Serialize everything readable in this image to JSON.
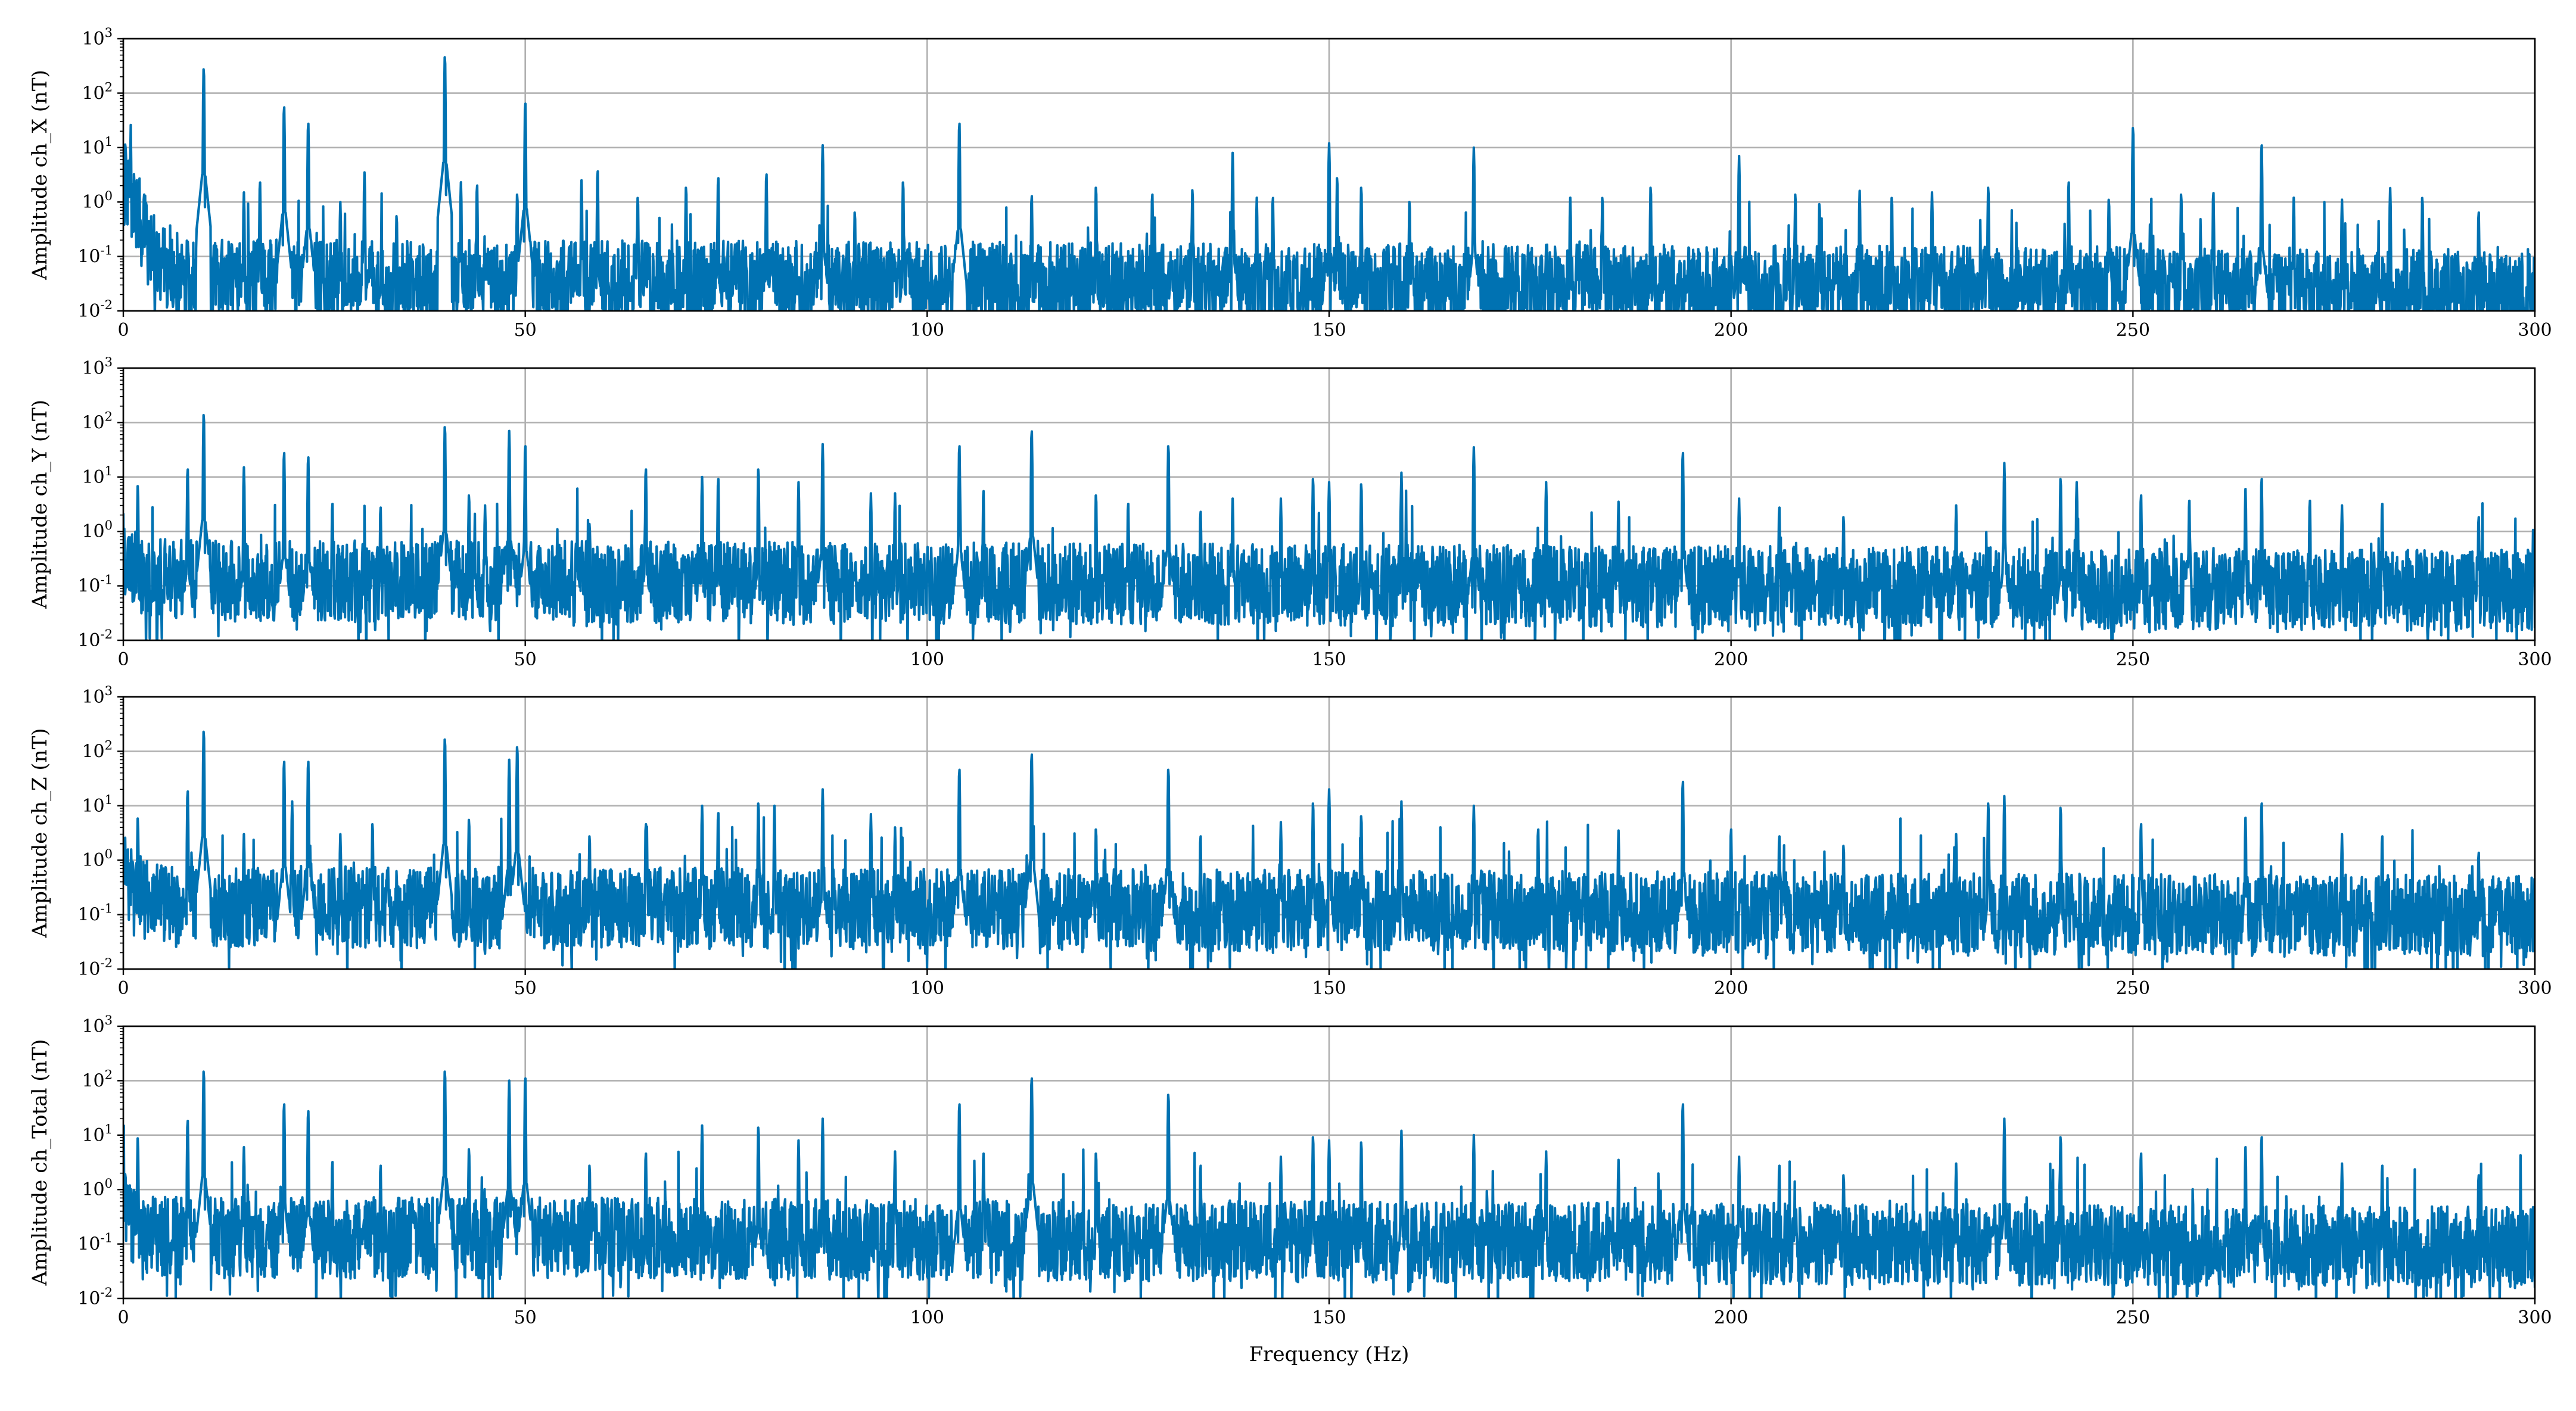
{
  "chart_data": [
    {
      "type": "line",
      "xlabel": "",
      "ylabel": "Amplitude ch_X (nT)",
      "xlim": [
        0,
        300
      ],
      "ylim": [
        0.01,
        1000
      ],
      "yscale": "log",
      "grid": true,
      "line_color": "#0072b2",
      "xticks": [
        "0",
        "50",
        "100",
        "150",
        "200",
        "250",
        "300"
      ],
      "yticks": [
        {
          "base": "10",
          "exp": "-2"
        },
        {
          "base": "10",
          "exp": "-1"
        },
        {
          "base": "10",
          "exp": "0"
        },
        {
          "base": "10",
          "exp": "1"
        },
        {
          "base": "10",
          "exp": "2"
        },
        {
          "base": "10",
          "exp": "3"
        }
      ],
      "series": [
        {
          "noise_floor": 0.045,
          "low_freq_start": 3.0,
          "peaks": [
            [
              0.3,
              10
            ],
            [
              10,
              300
            ],
            [
              15,
              1.5
            ],
            [
              17,
              2.5
            ],
            [
              20,
              60
            ],
            [
              23,
              30
            ],
            [
              27,
              1.0
            ],
            [
              30,
              3.5
            ],
            [
              34,
              0.6
            ],
            [
              40,
              500
            ],
            [
              42,
              2.3
            ],
            [
              44,
              2.2
            ],
            [
              49,
              1.5
            ],
            [
              50,
              70
            ],
            [
              57,
              2.5
            ],
            [
              59,
              4.0
            ],
            [
              64,
              1.3
            ],
            [
              70,
              2.0
            ],
            [
              74,
              3.0
            ],
            [
              80,
              3.5
            ],
            [
              87,
              11
            ],
            [
              91,
              0.7
            ],
            [
              97,
              2.5
            ],
            [
              104,
              30
            ],
            [
              113,
              1.4
            ],
            [
              121,
              2.0
            ],
            [
              128,
              1.5
            ],
            [
              133,
              1.8
            ],
            [
              138,
              8.0
            ],
            [
              141,
              1.2
            ],
            [
              143,
              1.3
            ],
            [
              150,
              12
            ],
            [
              151,
              3.0
            ],
            [
              154,
              2.0
            ],
            [
              160,
              1.1
            ],
            [
              168,
              10
            ],
            [
              180,
              1.2
            ],
            [
              184,
              1.3
            ],
            [
              190,
              2.0
            ],
            [
              201,
              7.0
            ],
            [
              208,
              1.5
            ],
            [
              211,
              1.0
            ],
            [
              216,
              1.6
            ],
            [
              220,
              1.3
            ],
            [
              225,
              1.5
            ],
            [
              232,
              2.0
            ],
            [
              242,
              2.5
            ],
            [
              247,
              1.2
            ],
            [
              250,
              25
            ],
            [
              256,
              1.5
            ],
            [
              260,
              1.6
            ],
            [
              266,
              12
            ],
            [
              270,
              1.2
            ],
            [
              276,
              1.1
            ],
            [
              282,
              1.8
            ],
            [
              286,
              1.3
            ],
            [
              293,
              0.7
            ]
          ]
        }
      ]
    },
    {
      "type": "line",
      "xlabel": "",
      "ylabel": "Amplitude ch_Y (nT)",
      "xlim": [
        0,
        300
      ],
      "ylim": [
        0.01,
        1000
      ],
      "yscale": "log",
      "grid": true,
      "line_color": "#0072b2",
      "xticks": [
        "0",
        "50",
        "100",
        "150",
        "200",
        "250",
        "300"
      ],
      "yticks": [
        {
          "base": "10",
          "exp": "-2"
        },
        {
          "base": "10",
          "exp": "-1"
        },
        {
          "base": "10",
          "exp": "0"
        },
        {
          "base": "10",
          "exp": "1"
        },
        {
          "base": "10",
          "exp": "2"
        },
        {
          "base": "10",
          "exp": "3"
        }
      ],
      "series": [
        {
          "noise_floor": 0.15,
          "low_freq_start": 0.5,
          "peaks": [
            [
              1.8,
              7.0
            ],
            [
              8,
              15
            ],
            [
              10,
              150
            ],
            [
              15,
              15
            ],
            [
              20,
              30
            ],
            [
              23,
              25
            ],
            [
              26,
              3.5
            ],
            [
              32,
              3.0
            ],
            [
              40,
              90
            ],
            [
              43,
              5.0
            ],
            [
              45,
              3.0
            ],
            [
              48,
              70
            ],
            [
              50,
              40
            ],
            [
              58,
              1.5
            ],
            [
              65,
              15
            ],
            [
              72,
              10
            ],
            [
              74,
              10
            ],
            [
              79,
              15
            ],
            [
              84,
              8.0
            ],
            [
              87,
              40
            ],
            [
              93,
              5.0
            ],
            [
              96,
              5.0
            ],
            [
              104,
              40
            ],
            [
              107,
              6.0
            ],
            [
              113,
              75
            ],
            [
              121,
              5.0
            ],
            [
              125,
              3.5
            ],
            [
              130,
              40
            ],
            [
              134,
              2.5
            ],
            [
              138,
              4.0
            ],
            [
              144,
              4.0
            ],
            [
              148,
              10
            ],
            [
              150,
              8.0
            ],
            [
              154,
              8.0
            ],
            [
              159,
              12
            ],
            [
              168,
              35
            ],
            [
              177,
              8.0
            ],
            [
              186,
              3.5
            ],
            [
              194,
              30
            ],
            [
              201,
              4.0
            ],
            [
              206,
              3.0
            ],
            [
              214,
              2.0
            ],
            [
              228,
              3.0
            ],
            [
              234,
              18
            ],
            [
              241,
              10
            ],
            [
              243,
              8.0
            ],
            [
              251,
              5.0
            ],
            [
              257,
              4.0
            ],
            [
              264,
              6.0
            ],
            [
              266,
              10
            ],
            [
              272,
              4.0
            ],
            [
              276,
              3.0
            ],
            [
              281,
              3.5
            ],
            [
              293,
              2.0
            ]
          ]
        }
      ]
    },
    {
      "type": "line",
      "xlabel": "",
      "ylabel": "Amplitude ch_Z (nT)",
      "xlim": [
        0,
        300
      ],
      "ylim": [
        0.01,
        1000
      ],
      "yscale": "log",
      "grid": true,
      "line_color": "#0072b2",
      "xticks": [
        "0",
        "50",
        "100",
        "150",
        "200",
        "250",
        "300"
      ],
      "yticks": [
        {
          "base": "10",
          "exp": "-2"
        },
        {
          "base": "10",
          "exp": "-1"
        },
        {
          "base": "10",
          "exp": "0"
        },
        {
          "base": "10",
          "exp": "1"
        },
        {
          "base": "10",
          "exp": "2"
        },
        {
          "base": "10",
          "exp": "3"
        }
      ],
      "series": [
        {
          "noise_floor": 0.17,
          "low_freq_start": 0.8,
          "peaks": [
            [
              1.8,
              6.0
            ],
            [
              8,
              20
            ],
            [
              10,
              250
            ],
            [
              15,
              3.0
            ],
            [
              20,
              70
            ],
            [
              21,
              12
            ],
            [
              23,
              70
            ],
            [
              27,
              3.0
            ],
            [
              31,
              5.0
            ],
            [
              40,
              180
            ],
            [
              43,
              6.0
            ],
            [
              48,
              70
            ],
            [
              49,
              130
            ],
            [
              58,
              3.0
            ],
            [
              65,
              5.0
            ],
            [
              72,
              10
            ],
            [
              74,
              8.0
            ],
            [
              79,
              12
            ],
            [
              81,
              10
            ],
            [
              87,
              20
            ],
            [
              93,
              7.0
            ],
            [
              96,
              4.0
            ],
            [
              104,
              50
            ],
            [
              113,
              95
            ],
            [
              121,
              4.0
            ],
            [
              130,
              50
            ],
            [
              134,
              3.0
            ],
            [
              144,
              5.0
            ],
            [
              148,
              12
            ],
            [
              150,
              20
            ],
            [
              154,
              7.0
            ],
            [
              159,
              12
            ],
            [
              168,
              10
            ],
            [
              176,
              4.0
            ],
            [
              186,
              3.5
            ],
            [
              194,
              30
            ],
            [
              200,
              4.0
            ],
            [
              206,
              3.0
            ],
            [
              214,
              2.0
            ],
            [
              228,
              3.0
            ],
            [
              232,
              12
            ],
            [
              234,
              15
            ],
            [
              241,
              10
            ],
            [
              251,
              5.0
            ],
            [
              264,
              6.0
            ],
            [
              266,
              12
            ],
            [
              276,
              3.0
            ],
            [
              281,
              3.0
            ],
            [
              293,
              1.5
            ]
          ]
        }
      ]
    },
    {
      "type": "line",
      "xlabel": "Frequency (Hz)",
      "ylabel": "Amplitude ch_Total (nT)",
      "xlim": [
        0,
        300
      ],
      "ylim": [
        0.01,
        1000
      ],
      "yscale": "log",
      "grid": true,
      "line_color": "#0072b2",
      "xticks": [
        "0",
        "50",
        "100",
        "150",
        "200",
        "250",
        "300"
      ],
      "yticks": [
        {
          "base": "10",
          "exp": "-2"
        },
        {
          "base": "10",
          "exp": "-1"
        },
        {
          "base": "10",
          "exp": "0"
        },
        {
          "base": "10",
          "exp": "1"
        },
        {
          "base": "10",
          "exp": "2"
        },
        {
          "base": "10",
          "exp": "3"
        }
      ],
      "series": [
        {
          "noise_floor": 0.16,
          "low_freq_start": 0.5,
          "peaks": [
            [
              1.8,
              9.0
            ],
            [
              8,
              20
            ],
            [
              10,
              160
            ],
            [
              15,
              6.0
            ],
            [
              20,
              40
            ],
            [
              23,
              30
            ],
            [
              26,
              3.5
            ],
            [
              32,
              3.0
            ],
            [
              40,
              160
            ],
            [
              43,
              6.0
            ],
            [
              48,
              100
            ],
            [
              50,
              120
            ],
            [
              58,
              3.0
            ],
            [
              65,
              5.0
            ],
            [
              72,
              15
            ],
            [
              79,
              15
            ],
            [
              84,
              8.0
            ],
            [
              87,
              20
            ],
            [
              96,
              5.0
            ],
            [
              104,
              40
            ],
            [
              107,
              5.0
            ],
            [
              113,
              120
            ],
            [
              121,
              5.0
            ],
            [
              130,
              60
            ],
            [
              134,
              3.0
            ],
            [
              144,
              4.0
            ],
            [
              148,
              10
            ],
            [
              150,
              8.0
            ],
            [
              154,
              8.0
            ],
            [
              159,
              12
            ],
            [
              168,
              10
            ],
            [
              177,
              5.0
            ],
            [
              186,
              3.5
            ],
            [
              194,
              40
            ],
            [
              201,
              4.0
            ],
            [
              206,
              3.0
            ],
            [
              214,
              2.0
            ],
            [
              228,
              3.0
            ],
            [
              234,
              20
            ],
            [
              241,
              10
            ],
            [
              251,
              5.0
            ],
            [
              264,
              6.0
            ],
            [
              266,
              10
            ],
            [
              276,
              3.0
            ],
            [
              281,
              3.0
            ],
            [
              293,
              2.0
            ]
          ]
        }
      ]
    }
  ]
}
